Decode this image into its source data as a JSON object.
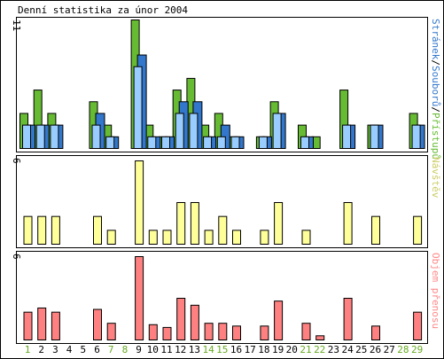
{
  "chart_data": {
    "type": "bar",
    "title": "Denní statistika za únor 2004",
    "grid": false,
    "categories": [
      "1",
      "2",
      "3",
      "4",
      "5",
      "6",
      "7",
      "8",
      "9",
      "10",
      "11",
      "12",
      "13",
      "14",
      "15",
      "16",
      "17",
      "18",
      "19",
      "20",
      "21",
      "22",
      "23",
      "24",
      "25",
      "26",
      "27",
      "28",
      "29"
    ],
    "weekend_days": [
      "1",
      "7",
      "8",
      "14",
      "15",
      "21",
      "22",
      "28",
      "29"
    ],
    "colors": {
      "weekday_label": "#000000",
      "weekend_label": "#66aa22",
      "accesses": "#66bb33",
      "files": "#3377cc",
      "pages": "#99ccff",
      "visitors": "#ffff99",
      "volume": "#ff8080",
      "volume_legend": "#ff8888",
      "visitors_legend": "#cccc66",
      "bar_stroke": "#000000",
      "frame": "#000000"
    },
    "panels": [
      {
        "y_max_label": "11",
        "ylim": [
          0,
          11
        ],
        "legend": [
          {
            "text": "Stránek",
            "color": "#3377cc"
          },
          {
            "text": "/",
            "color": "#000000"
          },
          {
            "text": "Souborů",
            "color": "#3377cc"
          },
          {
            "text": "/",
            "color": "#000000"
          },
          {
            "text": "Přístupů",
            "color": "#66bb33"
          }
        ],
        "series": [
          {
            "name": "Přístupů",
            "values": [
              3,
              5,
              3,
              0,
              0,
              4,
              2,
              0,
              11,
              2,
              1,
              5,
              6,
              2,
              3,
              1,
              0,
              1,
              4,
              0,
              2,
              1,
              0,
              5,
              0,
              2,
              0,
              0,
              3
            ]
          },
          {
            "name": "Souborů",
            "values": [
              2,
              2,
              2,
              0,
              0,
              3,
              1,
              0,
              8,
              1,
              1,
              4,
              4,
              1,
              2,
              1,
              0,
              1,
              3,
              0,
              1,
              0,
              0,
              2,
              0,
              2,
              0,
              0,
              2
            ]
          },
          {
            "name": "Stránek",
            "values": [
              2,
              2,
              2,
              0,
              0,
              2,
              1,
              0,
              7,
              1,
              1,
              3,
              3,
              1,
              1,
              1,
              0,
              1,
              3,
              0,
              1,
              0,
              0,
              2,
              0,
              2,
              0,
              0,
              2
            ]
          }
        ]
      },
      {
        "y_max_label": "6",
        "ylim": [
          0,
          6
        ],
        "legend": [
          {
            "text": "Návštěv",
            "color": "#cccc66"
          }
        ],
        "series": [
          {
            "name": "Návštěv",
            "values": [
              2,
              2,
              2,
              0,
              0,
              2,
              1,
              0,
              6,
              1,
              1,
              3,
              3,
              1,
              2,
              1,
              0,
              1,
              3,
              0,
              1,
              0,
              0,
              3,
              0,
              2,
              0,
              0,
              2
            ]
          }
        ]
      },
      {
        "y_max_label": "6",
        "ylim": [
          0,
          6
        ],
        "legend": [
          {
            "text": "Objem přenosu",
            "color": "#ff8888"
          }
        ],
        "series": [
          {
            "name": "Objem přenosu",
            "values": [
              2,
              2.3,
              2,
              0,
              0,
              2.2,
              1.2,
              0,
              6,
              1.1,
              0.9,
              3,
              2.5,
              1.2,
              1.2,
              1,
              0,
              1,
              2.8,
              0,
              1.2,
              0.3,
              0,
              3,
              0,
              1,
              0,
              0,
              2
            ]
          }
        ]
      }
    ]
  }
}
